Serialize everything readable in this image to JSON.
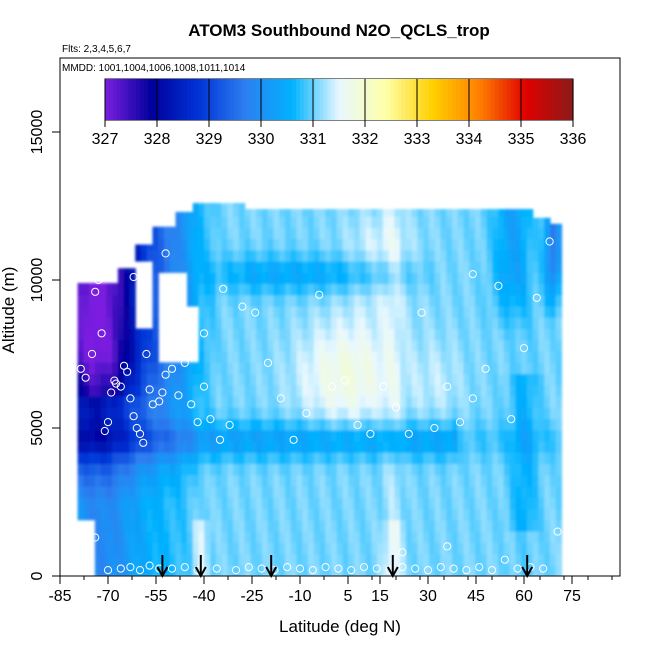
{
  "chart_data": {
    "type": "heatmap",
    "title": "ATOM3 Southbound N2O_QCLS_trop",
    "subtitle_flights": "Flts: 2,3,4,5,6,7",
    "subtitle_dates": "MMDD: 1001,1004,1006,1008,1011,1014",
    "xlabel": "Latitude (deg N)",
    "ylabel": "Altitude (m)",
    "xlim": [
      -85,
      90
    ],
    "ylim": [
      0,
      17500
    ],
    "x_ticks": [
      -85,
      -70,
      -55,
      -40,
      -25,
      -10,
      5,
      15,
      30,
      45,
      60,
      75
    ],
    "y_ticks": [
      0,
      5000,
      10000,
      15000
    ],
    "colorbar": {
      "ticks": [
        327,
        328,
        329,
        330,
        331,
        332,
        333,
        334,
        335,
        336
      ],
      "colors": [
        "#7b1fe0",
        "#00009c",
        "#0033d6",
        "#2d7ff0",
        "#00b2ff",
        "#e8f8ff",
        "#ffffa8",
        "#ffd000",
        "#ff8000",
        "#e00000",
        "#8b1a1a"
      ]
    },
    "arrow_latitudes": [
      -53,
      -41,
      -19,
      19,
      61
    ],
    "samples": [
      [
        -78.5,
        7000
      ],
      [
        -77,
        6700
      ],
      [
        -75,
        7500
      ],
      [
        -74,
        9600
      ],
      [
        -73,
        10000
      ],
      [
        -72,
        8200
      ],
      [
        -71,
        4900
      ],
      [
        -70,
        5200
      ],
      [
        -69,
        6200
      ],
      [
        -68,
        6600
      ],
      [
        -67.5,
        6500
      ],
      [
        -66,
        6400
      ],
      [
        -65,
        7100
      ],
      [
        -64,
        6900
      ],
      [
        -63,
        6000
      ],
      [
        -62,
        5400
      ],
      [
        -61,
        5000
      ],
      [
        -60,
        4800
      ],
      [
        -59,
        4500
      ],
      [
        -58,
        7500
      ],
      [
        -57,
        6300
      ],
      [
        -56,
        5800
      ],
      [
        -54,
        5900
      ],
      [
        -53,
        6200
      ],
      [
        -52,
        6800
      ],
      [
        -50,
        7000
      ],
      [
        -48,
        6100
      ],
      [
        -46,
        7200
      ],
      [
        -44,
        5800
      ],
      [
        -42,
        5200
      ],
      [
        -40,
        6400
      ],
      [
        -38,
        5300
      ],
      [
        -35,
        4600
      ],
      [
        -32,
        5100
      ],
      [
        -28,
        9100
      ],
      [
        -24,
        8900
      ],
      [
        -20,
        7200
      ],
      [
        -16,
        6000
      ],
      [
        -12,
        4600
      ],
      [
        -8,
        5500
      ],
      [
        -4,
        9500
      ],
      [
        0,
        6400
      ],
      [
        4,
        6600
      ],
      [
        8,
        5100
      ],
      [
        12,
        4800
      ],
      [
        16,
        6400
      ],
      [
        20,
        5700
      ],
      [
        24,
        4800
      ],
      [
        28,
        8900
      ],
      [
        32,
        5000
      ],
      [
        36,
        6400
      ],
      [
        40,
        5200
      ],
      [
        44,
        6000
      ],
      [
        48,
        7000
      ],
      [
        52,
        9800
      ],
      [
        56,
        5300
      ],
      [
        60,
        7700
      ],
      [
        64,
        9400
      ],
      [
        68,
        11300
      ],
      [
        70.5,
        1500
      ],
      [
        -70,
        200
      ],
      [
        -66,
        250
      ],
      [
        -63,
        300
      ],
      [
        -60,
        200
      ],
      [
        -57,
        350
      ],
      [
        -54,
        250
      ],
      [
        -50,
        250
      ],
      [
        -46,
        300
      ],
      [
        -42,
        200
      ],
      [
        -36,
        250
      ],
      [
        -30,
        200
      ],
      [
        -26,
        300
      ],
      [
        -22,
        250
      ],
      [
        -18,
        200
      ],
      [
        -14,
        300
      ],
      [
        -10,
        250
      ],
      [
        -6,
        200
      ],
      [
        -2,
        300
      ],
      [
        2,
        250
      ],
      [
        6,
        200
      ],
      [
        10,
        300
      ],
      [
        14,
        250
      ],
      [
        18,
        200
      ],
      [
        22,
        300
      ],
      [
        26,
        250
      ],
      [
        30,
        200
      ],
      [
        34,
        300
      ],
      [
        38,
        250
      ],
      [
        42,
        200
      ],
      [
        46,
        300
      ],
      [
        50,
        200
      ],
      [
        54,
        550
      ],
      [
        58,
        250
      ],
      [
        62,
        300
      ],
      [
        66,
        250
      ],
      [
        -76,
        800
      ],
      [
        -74,
        1300
      ],
      [
        22,
        800
      ],
      [
        36,
        1000
      ],
      [
        -40,
        8200
      ],
      [
        -34,
        9700
      ],
      [
        -62,
        10100
      ],
      [
        -58,
        9800
      ],
      [
        -52,
        10900
      ],
      [
        44,
        10200
      ]
    ]
  }
}
